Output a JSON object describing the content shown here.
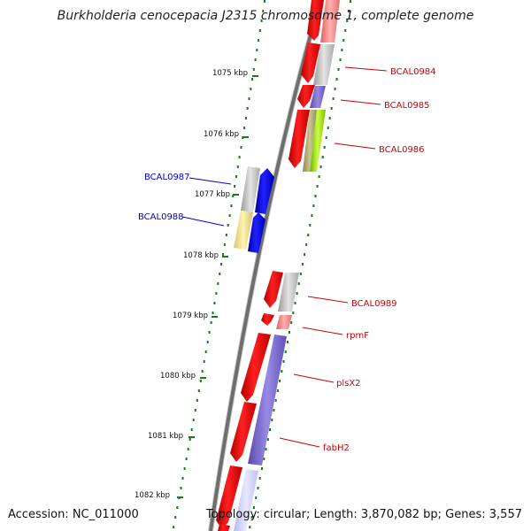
{
  "title": "Burkholderia cenocepacia J2315 chromosome 1, complete genome",
  "accession": "Accession: NC_011000",
  "topology": "Topology: circular; Length: 3,870,082 bp; Genes: 3,557",
  "colors": {
    "forward_cds": "#ff0000",
    "reverse_cds": "#0000ff",
    "backbone": "#808080",
    "gc_skew_tick": "#1a7a1a",
    "label_forward": "#cc0000",
    "label_reverse": "#0000cc"
  },
  "scale_labels": [
    "1075 kbp",
    "1076 kbp",
    "1077 kbp",
    "1078 kbp",
    "1079 kbp",
    "1080 kbp",
    "1081 kbp",
    "1082 kbp"
  ],
  "gene_labels": [
    {
      "text": "BCAL0984",
      "strand": "forward"
    },
    {
      "text": "BCAL0985",
      "strand": "forward"
    },
    {
      "text": "BCAL0986",
      "strand": "forward"
    },
    {
      "text": "BCAL0987",
      "strand": "reverse"
    },
    {
      "text": "BCAL0988",
      "strand": "reverse"
    },
    {
      "text": "BCAL0989",
      "strand": "forward"
    },
    {
      "text": "rpmF",
      "strand": "forward"
    },
    {
      "text": "plsX2",
      "strand": "forward"
    },
    {
      "text": "fabH2",
      "strand": "forward"
    }
  ]
}
